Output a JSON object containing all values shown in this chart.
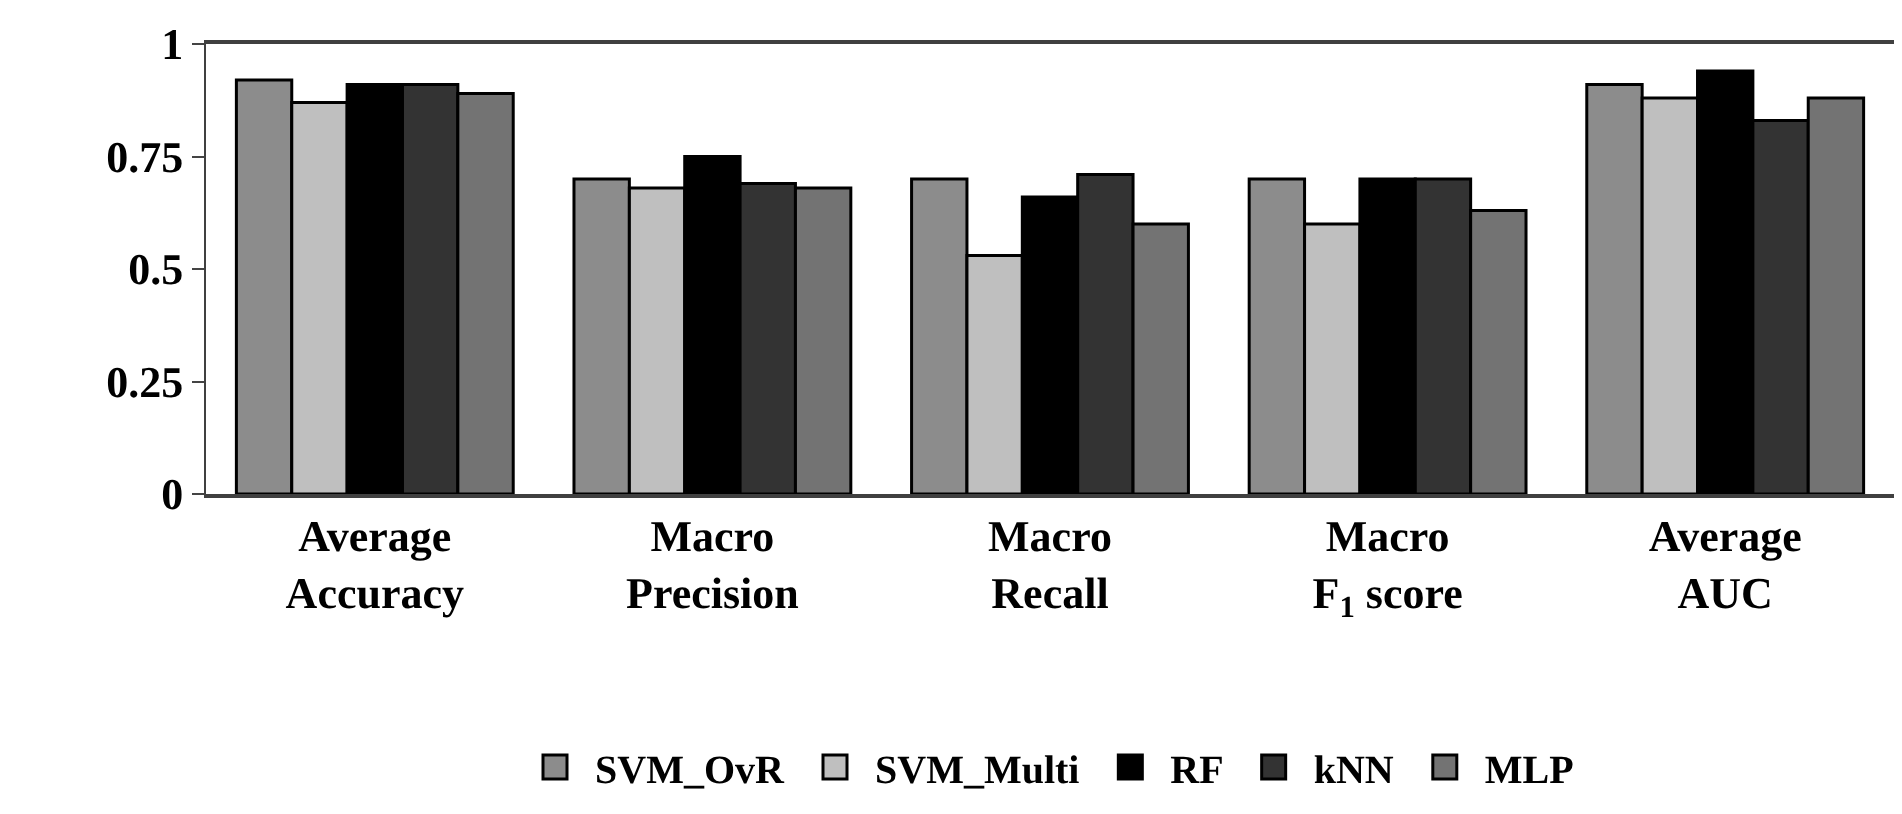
{
  "chart_data": {
    "type": "bar",
    "categories": [
      "Average\nAccuracy",
      "Macro\nPrecision",
      "Macro\nRecall",
      "Macro\nF$_{1}$ score",
      "Average\nAUC"
    ],
    "series": [
      {
        "name": "SVM_OvR",
        "color": "#8c8c8c",
        "values": [
          0.92,
          0.7,
          0.7,
          0.7,
          0.91
        ]
      },
      {
        "name": "SVM_Multi",
        "color": "#bfbfbf",
        "values": [
          0.87,
          0.68,
          0.53,
          0.6,
          0.88
        ]
      },
      {
        "name": "RF",
        "color": "#000000",
        "values": [
          0.91,
          0.75,
          0.66,
          0.7,
          0.94
        ]
      },
      {
        "name": "kNN",
        "color": "#333333",
        "values": [
          0.91,
          0.69,
          0.71,
          0.7,
          0.83
        ]
      },
      {
        "name": "MLP",
        "color": "#737373",
        "values": [
          0.89,
          0.68,
          0.6,
          0.63,
          0.88
        ]
      }
    ],
    "ylim": [
      0,
      1
    ],
    "yticks": [
      0,
      0.25,
      0.5,
      0.75,
      1
    ],
    "legend": "bottom"
  }
}
